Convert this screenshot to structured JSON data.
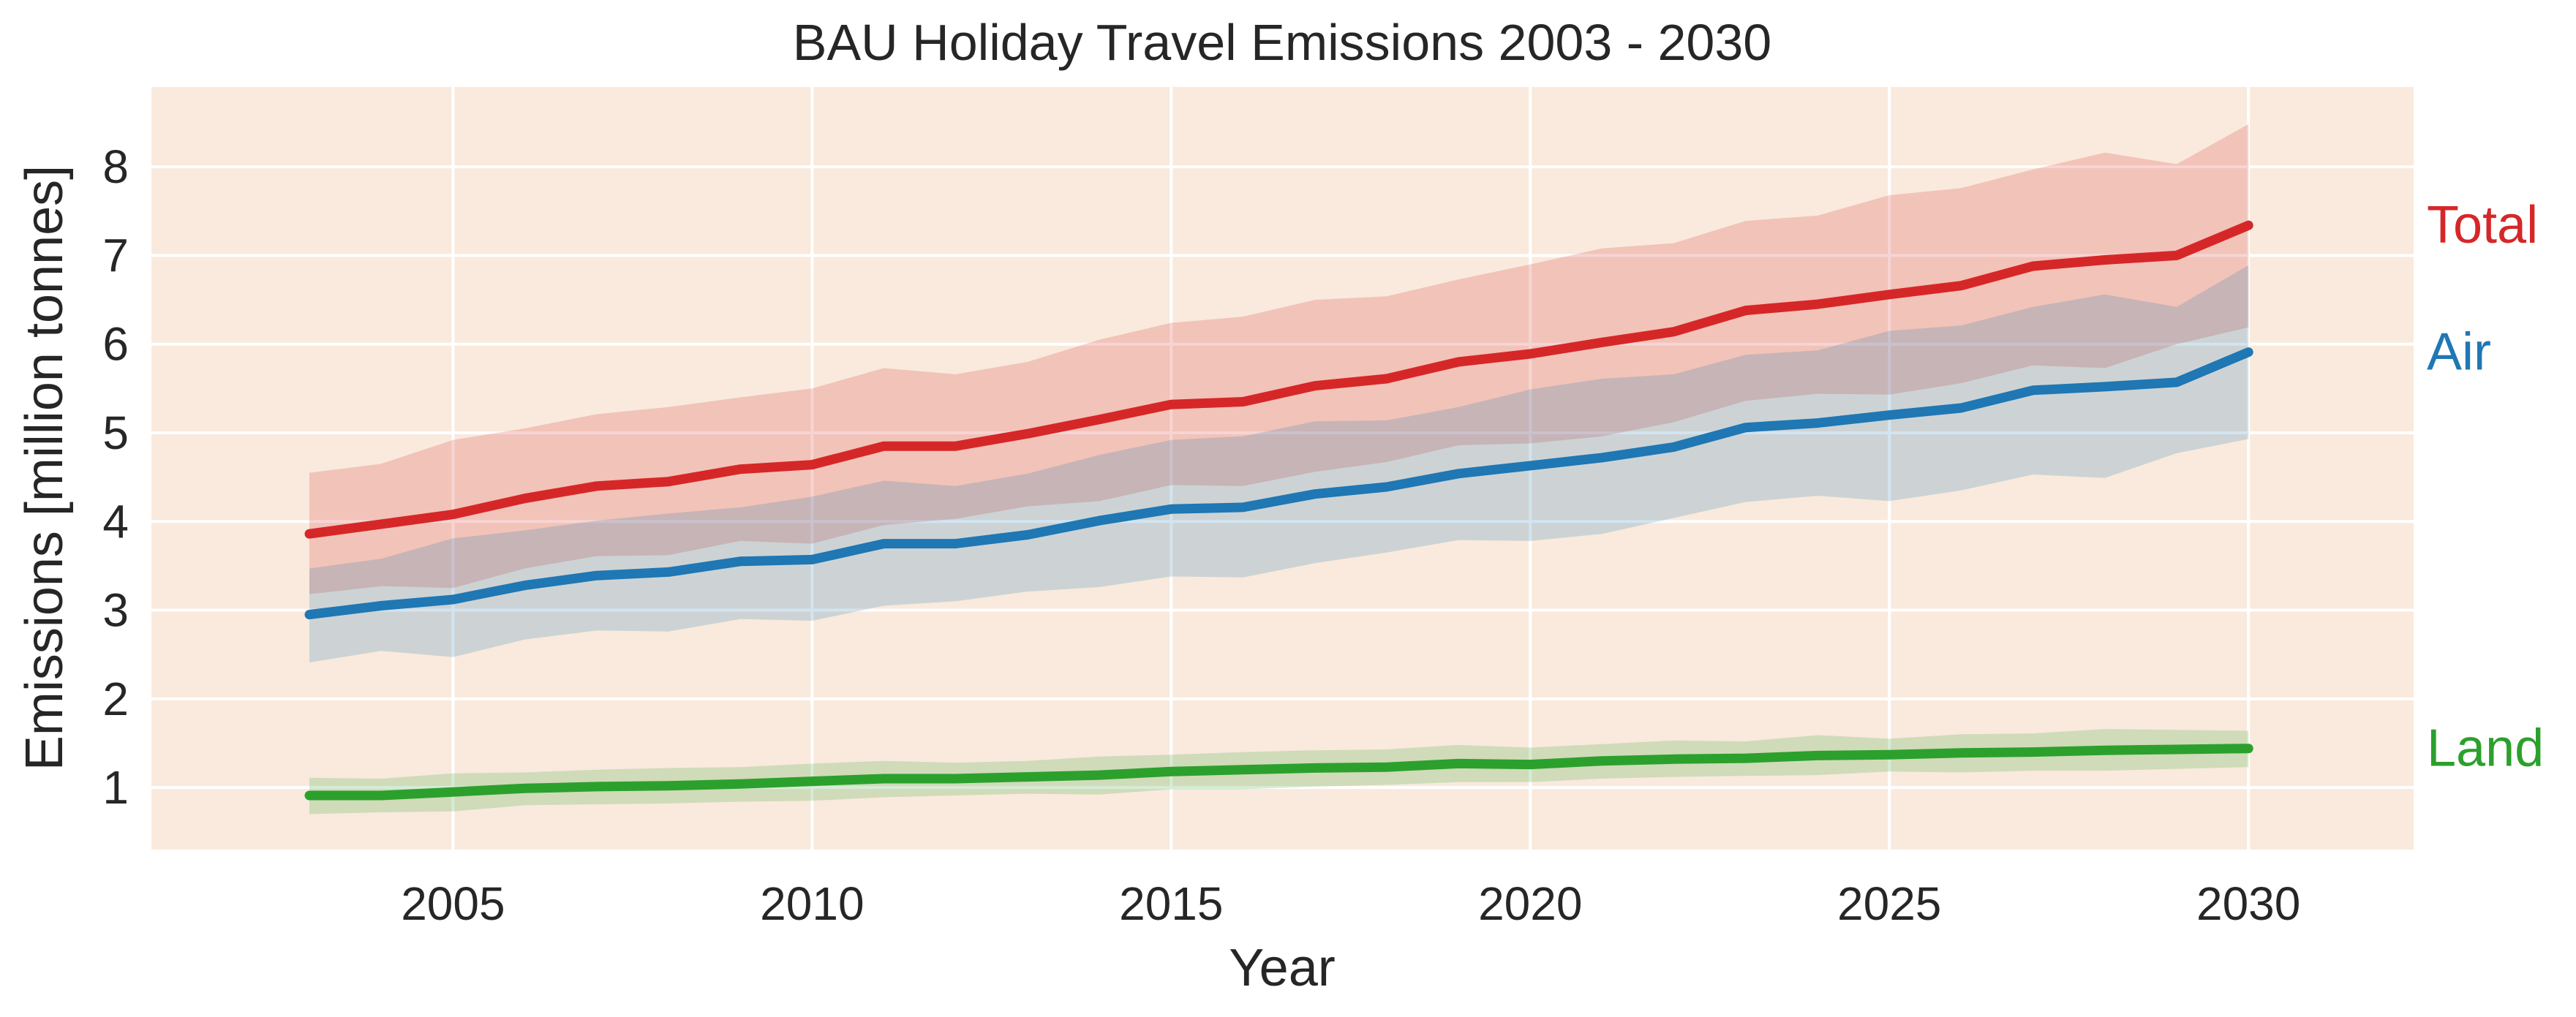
{
  "chart_data": {
    "type": "line",
    "title": "BAU Holiday Travel Emissions 2003 - 2030",
    "xlabel": "Year",
    "ylabel": "Emissions [million tonnes]",
    "xlim": [
      2000.8,
      2032.3
    ],
    "ylim": [
      0.3,
      8.9
    ],
    "xticks": [
      "2005",
      "2010",
      "2015",
      "2020",
      "2025",
      "2030"
    ],
    "yticks": [
      "1",
      "2",
      "3",
      "4",
      "5",
      "6",
      "7",
      "8"
    ],
    "grid": true,
    "x": [
      2003,
      2004,
      2005,
      2006,
      2007,
      2008,
      2009,
      2010,
      2011,
      2012,
      2013,
      2014,
      2015,
      2016,
      2017,
      2018,
      2019,
      2020,
      2021,
      2022,
      2023,
      2024,
      2025,
      2026,
      2027,
      2028,
      2029,
      2030
    ],
    "series": [
      {
        "name": "Total",
        "color": "#d62728",
        "values": [
          3.86,
          3.97,
          4.08,
          4.26,
          4.4,
          4.45,
          4.59,
          4.64,
          4.85,
          4.85,
          4.99,
          5.15,
          5.32,
          5.35,
          5.53,
          5.61,
          5.8,
          5.89,
          6.02,
          6.14,
          6.38,
          6.45,
          6.56,
          6.66,
          6.88,
          6.95,
          7.0,
          7.34
        ],
        "upper": [
          4.55,
          4.65,
          4.92,
          5.05,
          5.21,
          5.29,
          5.4,
          5.5,
          5.73,
          5.66,
          5.8,
          6.05,
          6.24,
          6.31,
          6.5,
          6.54,
          6.73,
          6.9,
          7.08,
          7.14,
          7.39,
          7.45,
          7.68,
          7.76,
          7.97,
          8.16,
          8.03,
          8.48
        ],
        "lower": [
          3.18,
          3.27,
          3.25,
          3.47,
          3.61,
          3.62,
          3.78,
          3.75,
          3.96,
          4.03,
          4.17,
          4.23,
          4.41,
          4.4,
          4.56,
          4.67,
          4.86,
          4.88,
          4.96,
          5.12,
          5.36,
          5.44,
          5.43,
          5.56,
          5.76,
          5.73,
          6.0,
          6.19
        ]
      },
      {
        "name": "Air",
        "color": "#1f77b4",
        "values": [
          2.95,
          3.05,
          3.12,
          3.28,
          3.39,
          3.43,
          3.55,
          3.57,
          3.75,
          3.75,
          3.85,
          4.01,
          4.14,
          4.16,
          4.31,
          4.39,
          4.54,
          4.63,
          4.72,
          4.84,
          5.06,
          5.11,
          5.2,
          5.28,
          5.48,
          5.52,
          5.57,
          5.91
        ],
        "upper": [
          3.47,
          3.58,
          3.81,
          3.9,
          4.01,
          4.09,
          4.16,
          4.28,
          4.46,
          4.4,
          4.54,
          4.75,
          4.92,
          4.96,
          5.13,
          5.14,
          5.29,
          5.49,
          5.61,
          5.66,
          5.88,
          5.93,
          6.15,
          6.21,
          6.42,
          6.56,
          6.42,
          6.89
        ],
        "lower": [
          2.41,
          2.54,
          2.47,
          2.67,
          2.77,
          2.76,
          2.9,
          2.88,
          3.05,
          3.1,
          3.21,
          3.26,
          3.38,
          3.37,
          3.53,
          3.65,
          3.79,
          3.78,
          3.86,
          4.04,
          4.22,
          4.29,
          4.23,
          4.35,
          4.53,
          4.49,
          4.77,
          4.93
        ]
      },
      {
        "name": "Land",
        "color": "#2ca02c",
        "values": [
          0.91,
          0.91,
          0.95,
          0.99,
          1.01,
          1.02,
          1.04,
          1.07,
          1.1,
          1.1,
          1.12,
          1.14,
          1.18,
          1.2,
          1.22,
          1.23,
          1.27,
          1.26,
          1.3,
          1.32,
          1.33,
          1.36,
          1.37,
          1.39,
          1.4,
          1.42,
          1.43,
          1.44
        ],
        "upper": [
          1.11,
          1.1,
          1.16,
          1.17,
          1.2,
          1.22,
          1.23,
          1.27,
          1.3,
          1.28,
          1.3,
          1.35,
          1.37,
          1.4,
          1.42,
          1.43,
          1.48,
          1.45,
          1.49,
          1.53,
          1.52,
          1.59,
          1.55,
          1.6,
          1.61,
          1.66,
          1.65,
          1.64
        ],
        "lower": [
          0.7,
          0.72,
          0.73,
          0.8,
          0.81,
          0.82,
          0.84,
          0.85,
          0.89,
          0.91,
          0.93,
          0.92,
          0.98,
          0.98,
          1.01,
          1.03,
          1.06,
          1.06,
          1.1,
          1.12,
          1.13,
          1.14,
          1.18,
          1.17,
          1.19,
          1.19,
          1.21,
          1.23
        ]
      }
    ]
  },
  "style": {
    "plot_background": "#f9eadd",
    "grid_color": "#ffffff"
  }
}
